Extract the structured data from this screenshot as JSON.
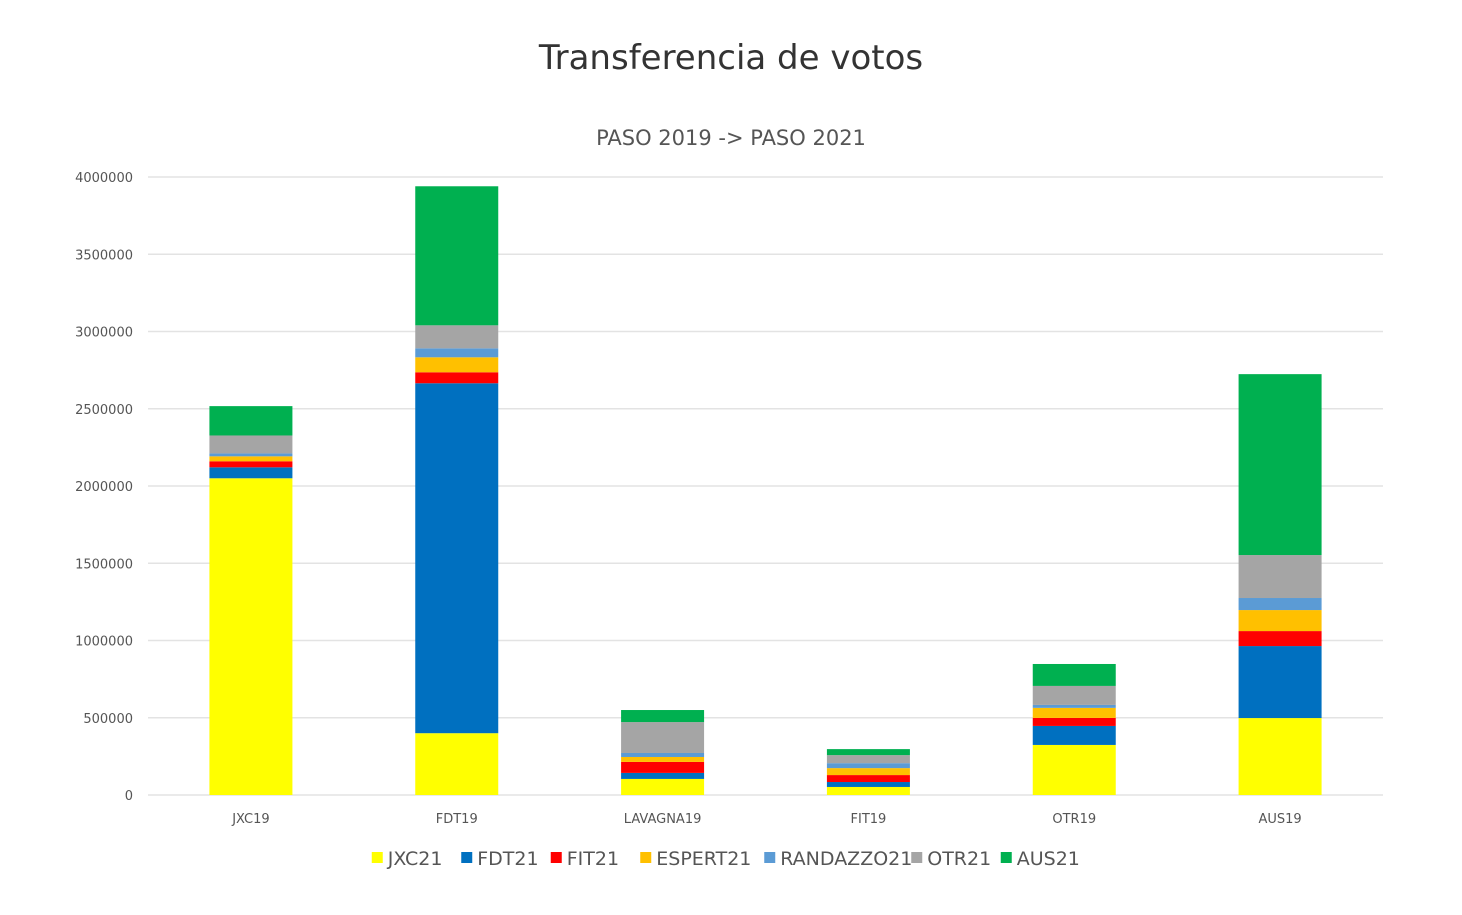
{
  "chart_data": {
    "type": "bar",
    "stacked": true,
    "title": "Transferencia de votos",
    "subtitle": "PASO 2019 -> PASO 2021",
    "xlabel": "",
    "ylabel": "",
    "ylim": [
      0,
      4000000
    ],
    "yticks": [
      "0",
      "500000",
      "1000000",
      "1500000",
      "2000000",
      "2500000",
      "3000000",
      "3500000",
      "4000000"
    ],
    "grid": true,
    "legend_position": "bottom",
    "categories": [
      "JXC19",
      "FDT19",
      "LAVAGNA19",
      "FIT19",
      "OTR19",
      "AUS19"
    ],
    "series": [
      {
        "name": "JXC21",
        "color": "#FFFF00",
        "values": [
          2050000,
          400000,
          104000,
          52000,
          324000,
          498000
        ]
      },
      {
        "name": "FDT21",
        "color": "#0070C0",
        "values": [
          71000,
          2265000,
          39000,
          32000,
          123000,
          466000
        ]
      },
      {
        "name": "FIT21",
        "color": "#FF0000",
        "values": [
          39000,
          71000,
          71000,
          45000,
          52000,
          97000
        ]
      },
      {
        "name": "ESPERT21",
        "color": "#FFC000",
        "values": [
          32000,
          97000,
          32000,
          45000,
          65000,
          136000
        ]
      },
      {
        "name": "RANDAZZO21",
        "color": "#5B9BD5",
        "values": [
          19000,
          58000,
          26000,
          32000,
          19000,
          78000
        ]
      },
      {
        "name": "OTR21",
        "color": "#A5A5A5",
        "values": [
          116000,
          149000,
          200000,
          52000,
          123000,
          278000
        ]
      },
      {
        "name": "AUS21",
        "color": "#00B050",
        "values": [
          190000,
          900000,
          78000,
          39000,
          142000,
          1171000
        ]
      }
    ]
  }
}
